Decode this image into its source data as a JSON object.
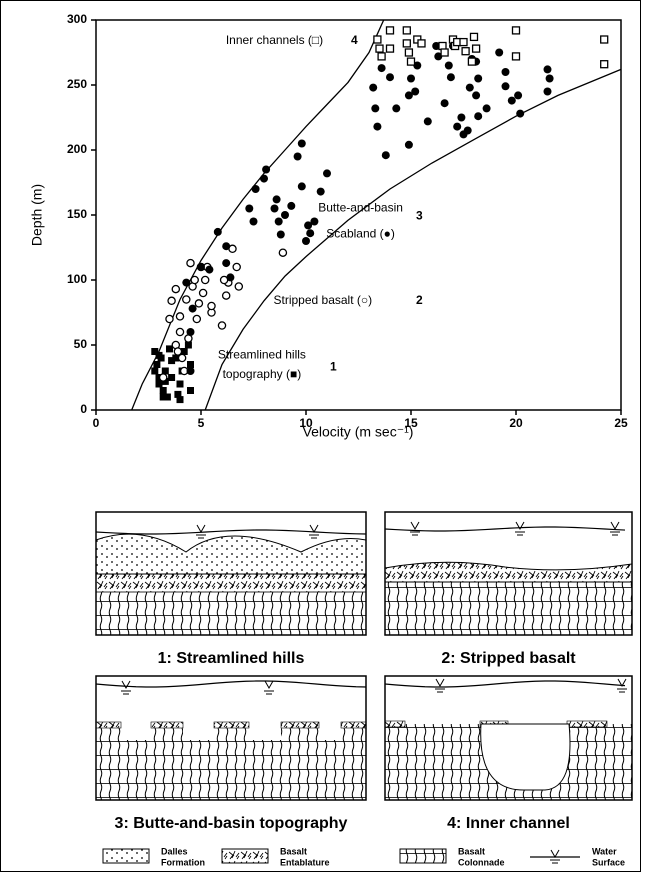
{
  "chart_data": {
    "type": "scatter",
    "xlabel": "Velocity (m sec⁻¹)",
    "ylabel": "Depth (m)",
    "xlim": [
      0,
      25
    ],
    "ylim": [
      0,
      300
    ],
    "xticks": [
      0,
      5,
      10,
      15,
      20,
      25
    ],
    "yticks": [
      0,
      50,
      100,
      150,
      200,
      250,
      300
    ],
    "color": "#000000",
    "series": [
      {
        "name": "1",
        "label": [
          "Streamlined hills",
          "topography (■)"
        ],
        "marker": "square-filled",
        "x": [
          2.8,
          2.9,
          3.0,
          3.0,
          3.1,
          3.2,
          3.3,
          3.4,
          3.5,
          3.6,
          3.8,
          3.9,
          4.0,
          4.1,
          4.2,
          4.4,
          4.5,
          3.0,
          3.3,
          3.6,
          4.0,
          4.5,
          2.8,
          3.2
        ],
        "values": [
          45,
          35,
          25,
          20,
          40,
          15,
          30,
          10,
          47,
          25,
          40,
          12,
          8,
          30,
          45,
          50,
          35,
          42,
          22,
          38,
          20,
          15,
          30,
          10
        ]
      },
      {
        "name": "2",
        "label": [
          "Stripped basalt (○)"
        ],
        "marker": "circle-open",
        "x": [
          3.2,
          3.5,
          3.6,
          3.8,
          3.8,
          4.0,
          4.0,
          4.1,
          4.2,
          4.3,
          4.5,
          4.6,
          4.7,
          4.8,
          5.0,
          5.1,
          5.2,
          5.3,
          5.5,
          5.5,
          6.0,
          6.2,
          6.3,
          6.5,
          6.7,
          6.8,
          4.9,
          4.4,
          3.9,
          8.9,
          6.1
        ],
        "values": [
          25,
          70,
          84,
          93,
          50,
          72,
          60,
          40,
          30,
          85,
          113,
          95,
          100,
          70,
          110,
          90,
          100,
          110,
          75,
          80,
          65,
          88,
          98,
          124,
          110,
          95,
          82,
          55,
          45,
          121,
          100
        ]
      },
      {
        "name": "3",
        "label": [
          "Butte-and-basin",
          "Scabland (●)"
        ],
        "marker": "circle-filled",
        "x": [
          4.5,
          4.5,
          4.6,
          4.3,
          5.0,
          5.4,
          5.8,
          6.2,
          6.2,
          6.4,
          7.3,
          7.5,
          7.6,
          8.0,
          8.1,
          8.5,
          8.6,
          8.7,
          8.8,
          9.0,
          9.3,
          9.6,
          9.8,
          9.8,
          10.0,
          10.1,
          10.2,
          10.4,
          10.7,
          11.0,
          13.2,
          13.3,
          13.4,
          13.6,
          13.8,
          14.0,
          14.3,
          14.9,
          14.9,
          15.0,
          15.0,
          15.2,
          15.3,
          15.8,
          16.3,
          16.6,
          16.8,
          16.9,
          17.0,
          17.2,
          17.4,
          17.5,
          17.7,
          17.8,
          18.1,
          18.1,
          18.2,
          18.2,
          18.6,
          19.2,
          19.5,
          19.5,
          19.8,
          20.1,
          20.2,
          21.5,
          21.5,
          21.6,
          16.2,
          17.9
        ],
        "values": [
          30,
          60,
          78,
          98,
          110,
          108,
          137,
          126,
          113,
          102,
          155,
          145,
          170,
          178,
          185,
          155,
          162,
          145,
          135,
          150,
          157,
          195,
          205,
          172,
          130,
          142,
          136,
          145,
          168,
          182,
          248,
          232,
          218,
          263,
          196,
          256,
          232,
          204,
          242,
          268,
          255,
          245,
          265,
          222,
          272,
          236,
          265,
          256,
          280,
          218,
          225,
          212,
          215,
          248,
          242,
          268,
          226,
          255,
          232,
          275,
          249,
          260,
          238,
          242,
          228,
          262,
          245,
          255,
          280,
          270
        ]
      },
      {
        "name": "4",
        "label": [
          "Inner channels (□)"
        ],
        "marker": "square-open",
        "x": [
          13.4,
          13.5,
          13.6,
          14.0,
          14.0,
          14.8,
          14.8,
          14.9,
          15.0,
          15.3,
          15.5,
          16.5,
          16.6,
          17.0,
          17.1,
          17.2,
          17.5,
          17.6,
          17.9,
          18.0,
          18.1,
          20.0,
          20.0,
          24.2,
          24.2
        ],
        "values": [
          285,
          278,
          272,
          292,
          278,
          292,
          282,
          275,
          268,
          285,
          282,
          280,
          275,
          285,
          280,
          283,
          283,
          276,
          268,
          287,
          278,
          292,
          272,
          285,
          266
        ]
      }
    ],
    "curves": [
      {
        "x": [
          1.7,
          2.2,
          3,
          4,
          5,
          6,
          7,
          8,
          9,
          10,
          11,
          12,
          13,
          13.7
        ],
        "values": [
          0,
          20,
          45,
          85,
          115,
          140,
          162,
          182,
          200,
          218,
          235,
          252,
          275,
          300
        ]
      },
      {
        "x": [
          5.2,
          6,
          7,
          8,
          9,
          10,
          12,
          14,
          16,
          18,
          20,
          22,
          25
        ],
        "values": [
          0,
          35,
          62,
          84,
          103,
          118,
          146,
          170,
          190,
          208,
          226,
          242,
          262
        ]
      }
    ]
  },
  "diagrams": {
    "panels": [
      {
        "caption": "1: Streamlined hills"
      },
      {
        "caption": "2: Stripped basalt"
      },
      {
        "caption": "3: Butte-and-basin topography"
      },
      {
        "caption": "4: Inner channel"
      }
    ],
    "legend": [
      [
        "Dalles",
        "Formation"
      ],
      [
        "Basalt",
        "Entablature"
      ],
      [
        "Basalt",
        "Colonnade"
      ],
      [
        "Water",
        "Surface"
      ]
    ]
  }
}
